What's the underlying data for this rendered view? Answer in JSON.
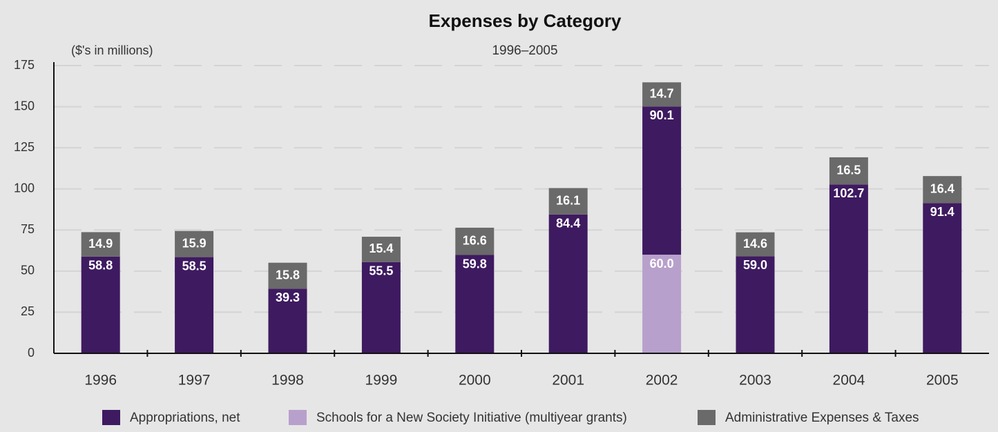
{
  "chart_data": {
    "type": "stacked_bar",
    "title": "Expenses by Category",
    "subtitle": "1996–2005",
    "y_axis_label": "($'s in millions)",
    "categories": [
      "1996",
      "1997",
      "1998",
      "1999",
      "2000",
      "2001",
      "2002",
      "2003",
      "2004",
      "2005"
    ],
    "series": [
      {
        "name": "Appropriations, net",
        "color": "#3e1a60",
        "values": [
          58.8,
          58.5,
          39.3,
          55.5,
          59.8,
          84.4,
          90.1,
          59.0,
          102.7,
          91.4
        ],
        "value_labels": [
          "58.8",
          "58.5",
          "39.3",
          "55.5",
          "59.8",
          "84.4",
          "90.1",
          "59.0",
          "102.7",
          "91.4"
        ]
      },
      {
        "name": "Schools for a New Society Initiative (multiyear grants)",
        "color": "#b8a0cc",
        "values": [
          null,
          null,
          null,
          null,
          null,
          null,
          60.0,
          null,
          null,
          null
        ],
        "value_labels": [
          null,
          null,
          null,
          null,
          null,
          null,
          "60.0",
          null,
          null,
          null
        ]
      },
      {
        "name": "Administrative Expenses & Taxes",
        "color": "#6a6a6a",
        "values": [
          14.9,
          15.9,
          15.8,
          15.4,
          16.6,
          16.1,
          14.7,
          14.6,
          16.5,
          16.4
        ],
        "value_labels": [
          "14.9",
          "15.9",
          "15.8",
          "15.4",
          "16.6",
          "16.1",
          "14.7",
          "14.6",
          "16.5",
          "16.4"
        ]
      }
    ],
    "ylim": [
      0,
      175
    ],
    "yticks": [
      0,
      25,
      50,
      75,
      100,
      125,
      150,
      175
    ],
    "grid": true,
    "legend": "bottom"
  }
}
